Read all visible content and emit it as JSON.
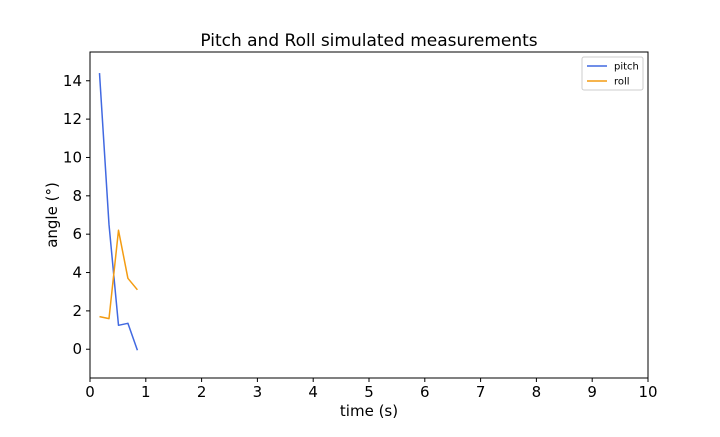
{
  "chart_data": {
    "type": "line",
    "title": "Pitch and Roll simulated measurements",
    "xlabel": "time (s)",
    "ylabel": "angle (°)",
    "xlim": [
      0,
      10
    ],
    "ylim": [
      -1.5,
      15.5
    ],
    "xticks": [
      "0",
      "1",
      "2",
      "3",
      "4",
      "5",
      "6",
      "7",
      "8",
      "9",
      "10"
    ],
    "yticks": [
      "0",
      "2",
      "4",
      "6",
      "8",
      "10",
      "12",
      "14"
    ],
    "grid": false,
    "legend_position": "top-right",
    "series": [
      {
        "name": "pitch",
        "color": "#4169e1",
        "x": [
          0.17,
          0.34,
          0.51,
          0.68,
          0.85
        ],
        "y": [
          14.4,
          6.5,
          1.25,
          1.35,
          -0.05
        ]
      },
      {
        "name": "roll",
        "color": "#f39c12",
        "x": [
          0.17,
          0.34,
          0.51,
          0.68,
          0.85
        ],
        "y": [
          1.7,
          1.6,
          6.2,
          3.7,
          3.1
        ]
      }
    ]
  }
}
